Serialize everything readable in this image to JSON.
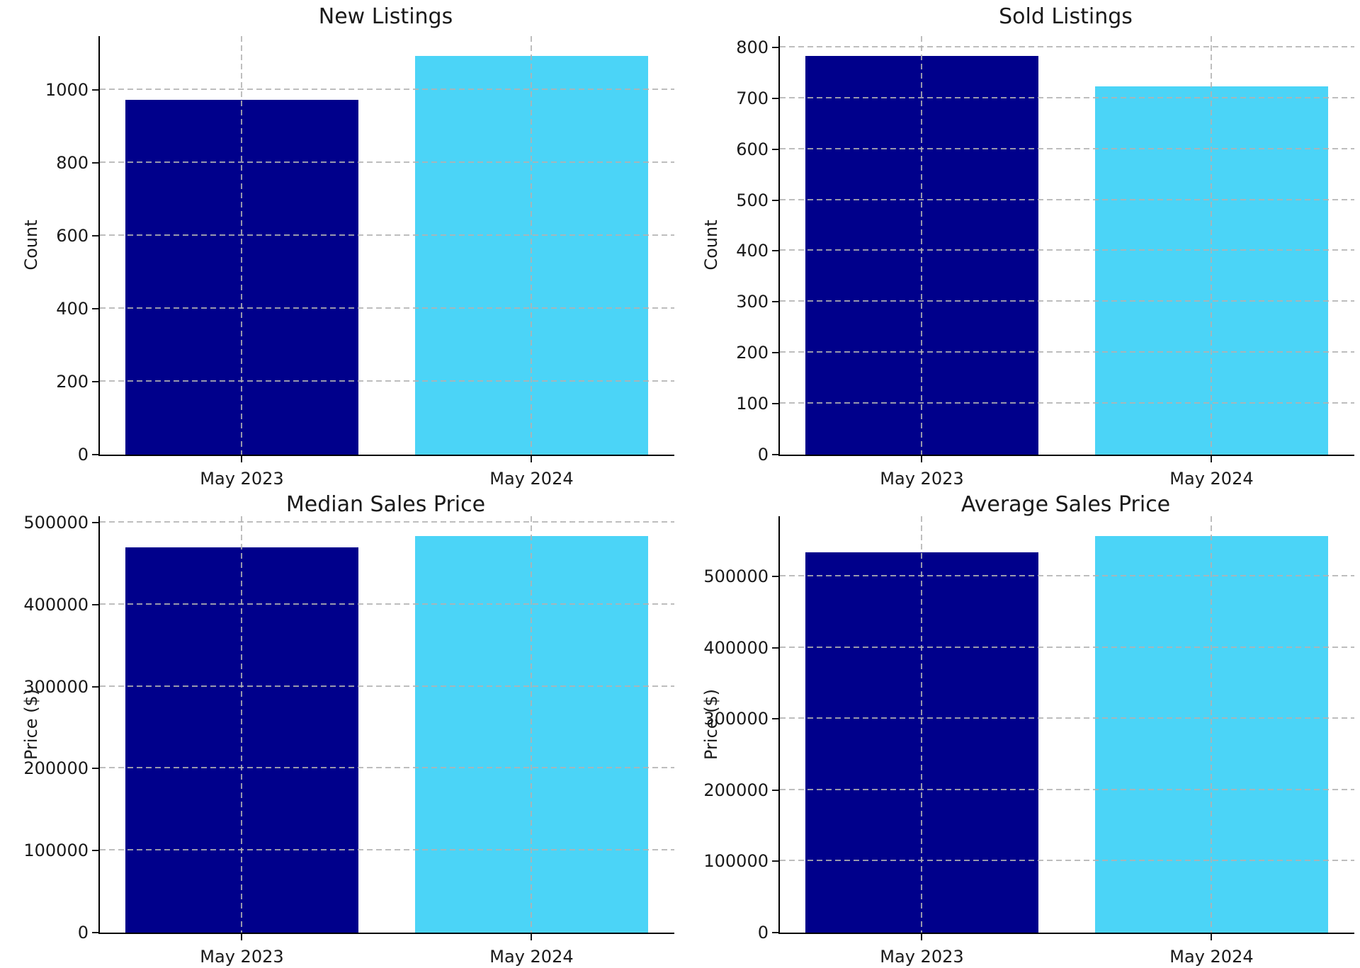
{
  "figure": {
    "background": "#ffffff",
    "layout": "2x2-subplots"
  },
  "palette": {
    "may_2023_bar": "#00008B",
    "may_2024_bar": "#4BD4F7",
    "gridline": "#b2b2b2",
    "axis": "#000000",
    "text": "#1a1a1a"
  },
  "categories": [
    "May 2023",
    "May 2024"
  ],
  "chart_data": [
    {
      "type": "bar",
      "title": "New Listings",
      "ylabel": "Count",
      "xlabel": "",
      "categories": [
        "May 2023",
        "May 2024"
      ],
      "values": [
        973,
        1093
      ],
      "yticks": [
        0,
        200,
        400,
        600,
        800,
        1000
      ],
      "ylim": [
        0,
        1147.65
      ],
      "grid": true,
      "grid_style": "dashed",
      "legend": "none"
    },
    {
      "type": "bar",
      "title": "Sold Listings",
      "ylabel": "Count",
      "xlabel": "",
      "categories": [
        "May 2023",
        "May 2024"
      ],
      "values": [
        783,
        723
      ],
      "yticks": [
        0,
        100,
        200,
        300,
        400,
        500,
        600,
        700,
        800
      ],
      "ylim": [
        0,
        822.15
      ],
      "grid": true,
      "grid_style": "dashed",
      "legend": "none"
    },
    {
      "type": "bar",
      "title": "Median Sales Price",
      "ylabel": "Price ($)",
      "xlabel": "",
      "categories": [
        "May 2023",
        "May 2024"
      ],
      "values": [
        470000,
        483500
      ],
      "yticks": [
        0,
        100000,
        200000,
        300000,
        400000,
        500000
      ],
      "ylim": [
        0,
        507675
      ],
      "grid": true,
      "grid_style": "dashed",
      "legend": "none"
    },
    {
      "type": "bar",
      "title": "Average Sales Price",
      "ylabel": "Price ($)",
      "xlabel": "",
      "categories": [
        "May 2023",
        "May 2024"
      ],
      "values": [
        533400,
        556700
      ],
      "yticks": [
        0,
        100000,
        200000,
        300000,
        400000,
        500000
      ],
      "ylim": [
        0,
        584535
      ],
      "grid": true,
      "grid_style": "dashed",
      "legend": "none"
    }
  ]
}
